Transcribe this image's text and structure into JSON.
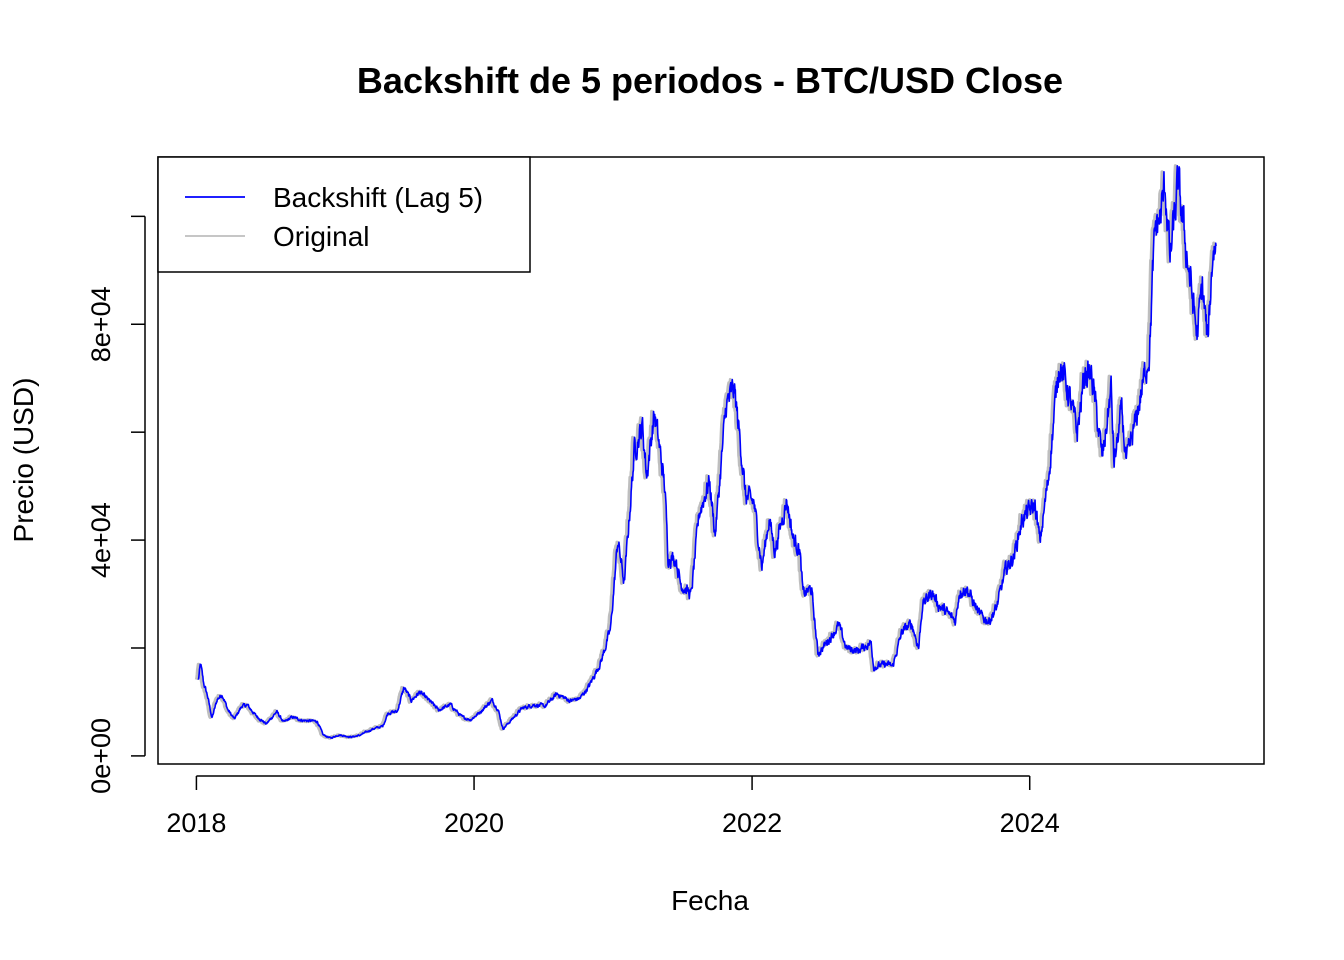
{
  "chart_data": {
    "type": "line",
    "title": "Backshift de 5 periodos - BTC/USD Close",
    "xlabel": "Fecha",
    "ylabel": "Precio (USD)",
    "x_ticks": [
      "2018",
      "2020",
      "2022",
      "2024"
    ],
    "x_tick_values": [
      "2018-01-01",
      "2020-01-01",
      "2022-01-01",
      "2024-01-01"
    ],
    "y_ticks": [
      "0e+00",
      "4e+04",
      "8e+04"
    ],
    "y_tick_values": [
      0,
      40000,
      80000
    ],
    "y_minor_tick_values": [
      0,
      20000,
      40000,
      60000,
      80000,
      100000
    ],
    "xlim": [
      "2017-09-22",
      "2025-09-08"
    ],
    "ylim": [
      -1500,
      111000
    ],
    "legend_position": "top-left",
    "grid": false,
    "series": [
      {
        "name": "Backshift (Lag 5)",
        "color": "#0000ff",
        "lag_days": 5
      },
      {
        "name": "Original",
        "color": "#bebebe",
        "lag_days": 0
      }
    ],
    "points": [
      [
        "2018-01-01",
        14000
      ],
      [
        "2018-01-07",
        17000
      ],
      [
        "2018-01-15",
        13500
      ],
      [
        "2018-01-25",
        11200
      ],
      [
        "2018-02-06",
        7000
      ],
      [
        "2018-02-20",
        10500
      ],
      [
        "2018-03-05",
        11400
      ],
      [
        "2018-03-20",
        8500
      ],
      [
        "2018-04-06",
        6800
      ],
      [
        "2018-04-25",
        9200
      ],
      [
        "2018-05-10",
        9400
      ],
      [
        "2018-06-01",
        7500
      ],
      [
        "2018-06-29",
        5900
      ],
      [
        "2018-07-26",
        8200
      ],
      [
        "2018-08-14",
        6200
      ],
      [
        "2018-09-05",
        7200
      ],
      [
        "2018-10-01",
        6600
      ],
      [
        "2018-11-10",
        6400
      ],
      [
        "2018-11-25",
        3900
      ],
      [
        "2018-12-15",
        3300
      ],
      [
        "2019-01-05",
        3900
      ],
      [
        "2019-02-07",
        3500
      ],
      [
        "2019-03-01",
        3800
      ],
      [
        "2019-04-05",
        5000
      ],
      [
        "2019-05-01",
        5500
      ],
      [
        "2019-05-15",
        8000
      ],
      [
        "2019-06-08",
        8200
      ],
      [
        "2019-06-26",
        12700
      ],
      [
        "2019-07-15",
        10300
      ],
      [
        "2019-08-06",
        11800
      ],
      [
        "2019-09-01",
        10200
      ],
      [
        "2019-09-25",
        8500
      ],
      [
        "2019-10-26",
        9500
      ],
      [
        "2019-11-25",
        7200
      ],
      [
        "2019-12-18",
        6700
      ],
      [
        "2020-01-10",
        8000
      ],
      [
        "2020-02-12",
        10300
      ],
      [
        "2020-02-28",
        8700
      ],
      [
        "2020-03-12",
        5000
      ],
      [
        "2020-04-01",
        6500
      ],
      [
        "2020-05-01",
        8800
      ],
      [
        "2020-06-01",
        9500
      ],
      [
        "2020-07-01",
        9200
      ],
      [
        "2020-08-01",
        11500
      ],
      [
        "2020-09-05",
        10200
      ],
      [
        "2020-10-01",
        10700
      ],
      [
        "2020-10-25",
        13000
      ],
      [
        "2020-11-25",
        17500
      ],
      [
        "2020-12-20",
        23500
      ],
      [
        "2021-01-08",
        40000
      ],
      [
        "2021-01-25",
        32000
      ],
      [
        "2021-02-21",
        57000
      ],
      [
        "2021-03-14",
        61000
      ],
      [
        "2021-03-25",
        52000
      ],
      [
        "2021-04-14",
        63500
      ],
      [
        "2021-04-30",
        56000
      ],
      [
        "2021-05-12",
        49500
      ],
      [
        "2021-05-20",
        37000
      ],
      [
        "2021-06-10",
        36500
      ],
      [
        "2021-06-22",
        32000
      ],
      [
        "2021-07-20",
        29800
      ],
      [
        "2021-08-10",
        45000
      ],
      [
        "2021-09-06",
        51000
      ],
      [
        "2021-09-21",
        41000
      ],
      [
        "2021-10-20",
        65000
      ],
      [
        "2021-11-10",
        68000
      ],
      [
        "2021-11-28",
        57000
      ],
      [
        "2021-12-10",
        48000
      ],
      [
        "2022-01-01",
        47000
      ],
      [
        "2022-01-22",
        35000
      ],
      [
        "2022-02-10",
        44000
      ],
      [
        "2022-02-25",
        38000
      ],
      [
        "2022-03-28",
        47500
      ],
      [
        "2022-04-15",
        40000
      ],
      [
        "2022-05-01",
        38500
      ],
      [
        "2022-05-10",
        30000
      ],
      [
        "2022-06-01",
        31000
      ],
      [
        "2022-06-18",
        19000
      ],
      [
        "2022-07-01",
        20000
      ],
      [
        "2022-08-12",
        24200
      ],
      [
        "2022-09-01",
        20000
      ],
      [
        "2022-10-01",
        19500
      ],
      [
        "2022-11-05",
        21000
      ],
      [
        "2022-11-12",
        16500
      ],
      [
        "2022-12-15",
        17000
      ],
      [
        "2023-01-01",
        16600
      ],
      [
        "2023-01-25",
        23000
      ],
      [
        "2023-02-20",
        24500
      ],
      [
        "2023-03-10",
        20000
      ],
      [
        "2023-03-20",
        28000
      ],
      [
        "2023-04-14",
        30400
      ],
      [
        "2023-05-01",
        28000
      ],
      [
        "2023-06-15",
        25000
      ],
      [
        "2023-06-25",
        30500
      ],
      [
        "2023-07-15",
        31000
      ],
      [
        "2023-08-18",
        26000
      ],
      [
        "2023-09-11",
        25000
      ],
      [
        "2023-10-01",
        27500
      ],
      [
        "2023-10-25",
        34500
      ],
      [
        "2023-11-15",
        37000
      ],
      [
        "2023-12-08",
        44000
      ],
      [
        "2024-01-10",
        46500
      ],
      [
        "2024-01-23",
        39500
      ],
      [
        "2024-02-15",
        52000
      ],
      [
        "2024-03-13",
        73000
      ],
      [
        "2024-04-01",
        69000
      ],
      [
        "2024-04-30",
        60000
      ],
      [
        "2024-05-20",
        71000
      ],
      [
        "2024-06-07",
        70500
      ],
      [
        "2024-07-05",
        55000
      ],
      [
        "2024-07-28",
        68000
      ],
      [
        "2024-08-05",
        54000
      ],
      [
        "2024-08-25",
        64000
      ],
      [
        "2024-09-06",
        54000
      ],
      [
        "2024-10-01",
        62000
      ],
      [
        "2024-10-28",
        72000
      ],
      [
        "2024-11-06",
        75000
      ],
      [
        "2024-11-15",
        90000
      ],
      [
        "2024-11-22",
        98000
      ],
      [
        "2024-12-05",
        100000
      ],
      [
        "2024-12-17",
        106000
      ],
      [
        "2024-12-30",
        92000
      ],
      [
        "2025-01-20",
        106000
      ],
      [
        "2025-02-03",
        98000
      ],
      [
        "2025-02-25",
        86000
      ],
      [
        "2025-03-11",
        78000
      ],
      [
        "2025-03-25",
        87000
      ],
      [
        "2025-04-08",
        76500
      ],
      [
        "2025-04-22",
        94000
      ],
      [
        "2025-04-30",
        94500
      ]
    ]
  }
}
